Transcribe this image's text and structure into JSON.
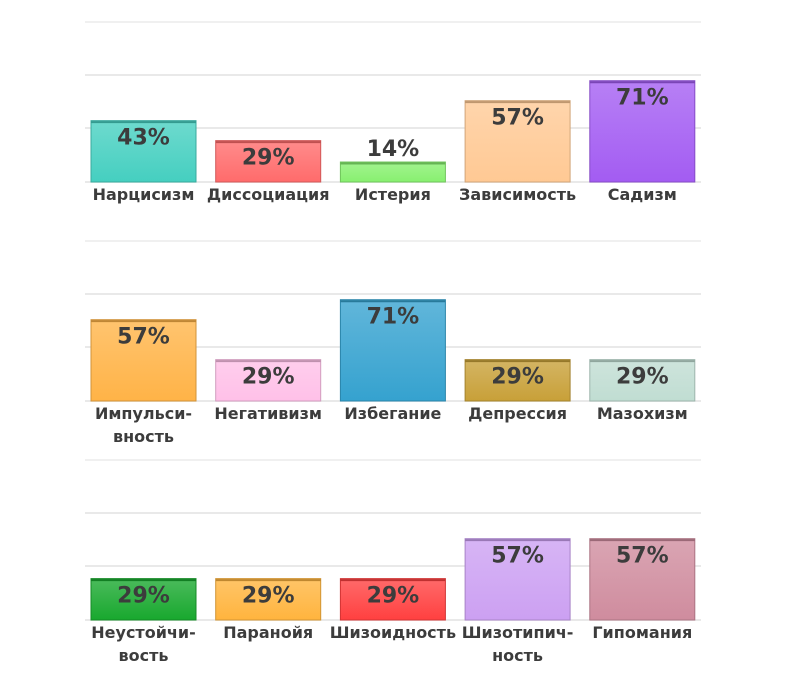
{
  "chart_data": [
    {
      "type": "bar",
      "categories": [
        "Нарцисизм",
        "Диссоциация",
        "Истерия",
        "Зависимость",
        "Садизм"
      ],
      "values": [
        43,
        29,
        14,
        57,
        71
      ],
      "value_labels": [
        "43%",
        "29%",
        "14%",
        "57%",
        "71%"
      ],
      "tick_labels": [
        [
          "Нарцисизм"
        ],
        [
          "Диссоциация"
        ],
        [
          "Истерия"
        ],
        [
          "Зависимость"
        ],
        [
          "Садизм"
        ]
      ],
      "colors": [
        "#45cfc0",
        "#ff6b6b",
        "#88f070",
        "#ffc994",
        "#a35cf2"
      ],
      "ylim": [
        0,
        100
      ],
      "grid": true
    },
    {
      "type": "bar",
      "categories": [
        "Импульсивность",
        "Негативизм",
        "Избегание",
        "Депрессия",
        "Мазохизм"
      ],
      "values": [
        57,
        29,
        71,
        29,
        29
      ],
      "value_labels": [
        "57%",
        "29%",
        "71%",
        "29%",
        "29%"
      ],
      "tick_labels": [
        [
          "Импульси-",
          "вность"
        ],
        [
          "Негативизм"
        ],
        [
          "Избегание"
        ],
        [
          "Депрессия"
        ],
        [
          "Мазохизм"
        ]
      ],
      "colors": [
        "#ffb347",
        "#ffc0e8",
        "#35a2cf",
        "#c8a038",
        "#c0ddd2"
      ],
      "ylim": [
        0,
        100
      ],
      "grid": true
    },
    {
      "type": "bar",
      "categories": [
        "Неустойчивость",
        "Паранойя",
        "Шизоидность",
        "Шизотипичность",
        "Гипомания"
      ],
      "values": [
        29,
        29,
        29,
        57,
        57
      ],
      "value_labels": [
        "29%",
        "29%",
        "29%",
        "57%",
        "57%"
      ],
      "tick_labels": [
        [
          "Неустойчи-",
          "вость"
        ],
        [
          "Паранойя"
        ],
        [
          "Шизоидность"
        ],
        [
          "Шизотипич-",
          "ность"
        ],
        [
          "Гипомания"
        ]
      ],
      "colors": [
        "#18a82e",
        "#ffb43e",
        "#ff4040",
        "#cca0f2",
        "#cf8c9e"
      ],
      "ylim": [
        0,
        100
      ],
      "grid": true
    }
  ]
}
